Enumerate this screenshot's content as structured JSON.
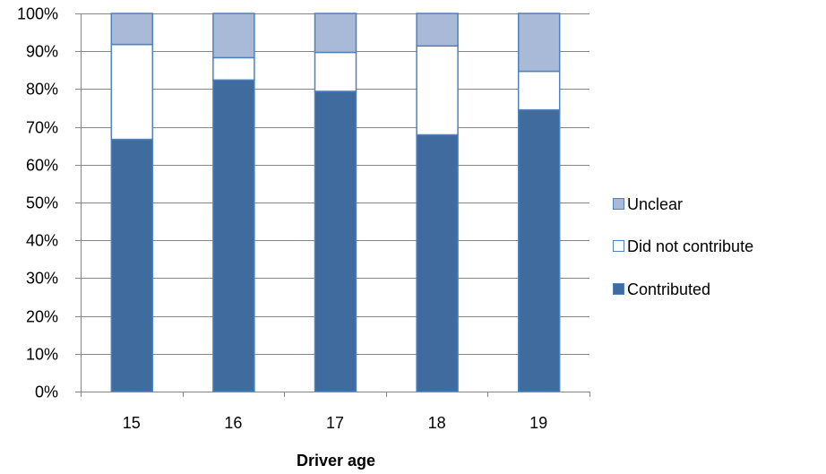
{
  "chart_data": {
    "type": "bar",
    "stacked": true,
    "percent_stacked": true,
    "title": "",
    "xlabel": "Driver age",
    "ylabel": "",
    "categories": [
      "15",
      "16",
      "17",
      "18",
      "19"
    ],
    "series": [
      {
        "name": "Contributed",
        "color": "#3f6b9f",
        "values": [
          66.7,
          82.4,
          79.4,
          67.9,
          74.5
        ]
      },
      {
        "name": "Did not contribute",
        "color": "#ffffff",
        "values": [
          25.1,
          5.9,
          10.3,
          23.5,
          10.2
        ]
      },
      {
        "name": "Unclear",
        "color": "#a9b9d8",
        "values": [
          8.2,
          11.7,
          10.3,
          8.6,
          15.3
        ]
      }
    ],
    "ylim": [
      0,
      100
    ],
    "y_ticks": [
      "0%",
      "10%",
      "20%",
      "30%",
      "40%",
      "50%",
      "60%",
      "70%",
      "80%",
      "90%",
      "100%"
    ],
    "grid": true,
    "legend": {
      "placement": "right",
      "order": [
        "Unclear",
        "Did not contribute",
        "Contributed"
      ]
    },
    "colors": {
      "axis": "#868686",
      "grid": "#868686",
      "bar_border": "#4f81bd"
    }
  }
}
